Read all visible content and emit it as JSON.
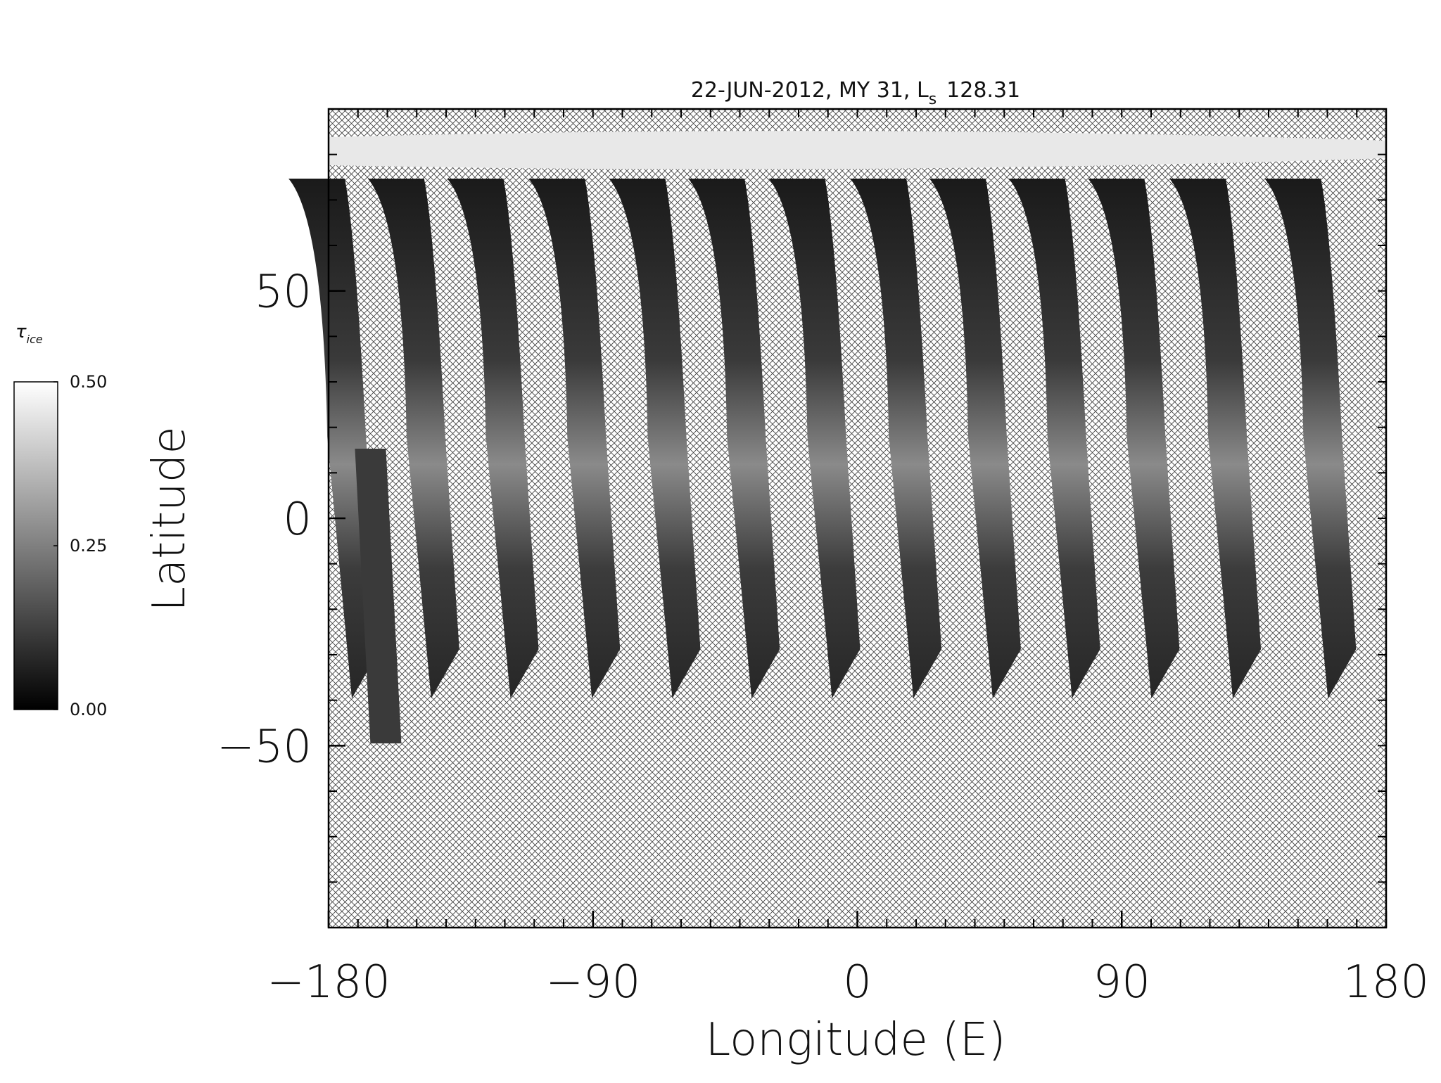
{
  "chart_data": {
    "type": "map",
    "title": "22-JUN-2012, MY 31,  L",
    "title_subscript": "s",
    "title_value": "128.31",
    "xlabel": "Longitude (E)",
    "ylabel": "Latitude",
    "xlim": [
      -180,
      180
    ],
    "ylim": [
      -90,
      90
    ],
    "xticks": [
      -180,
      -90,
      0,
      90,
      180
    ],
    "yticks": [
      -50,
      0,
      50
    ],
    "colorbar": {
      "label": "τ",
      "label_subscript": "ice",
      "lim": [
        0,
        0.5
      ],
      "ticks": [
        {
          "value": 0,
          "label": "0.00"
        },
        {
          "value": 0.25,
          "label": "0.25"
        },
        {
          "value": 0.5,
          "label": "0.50"
        }
      ]
    }
  }
}
